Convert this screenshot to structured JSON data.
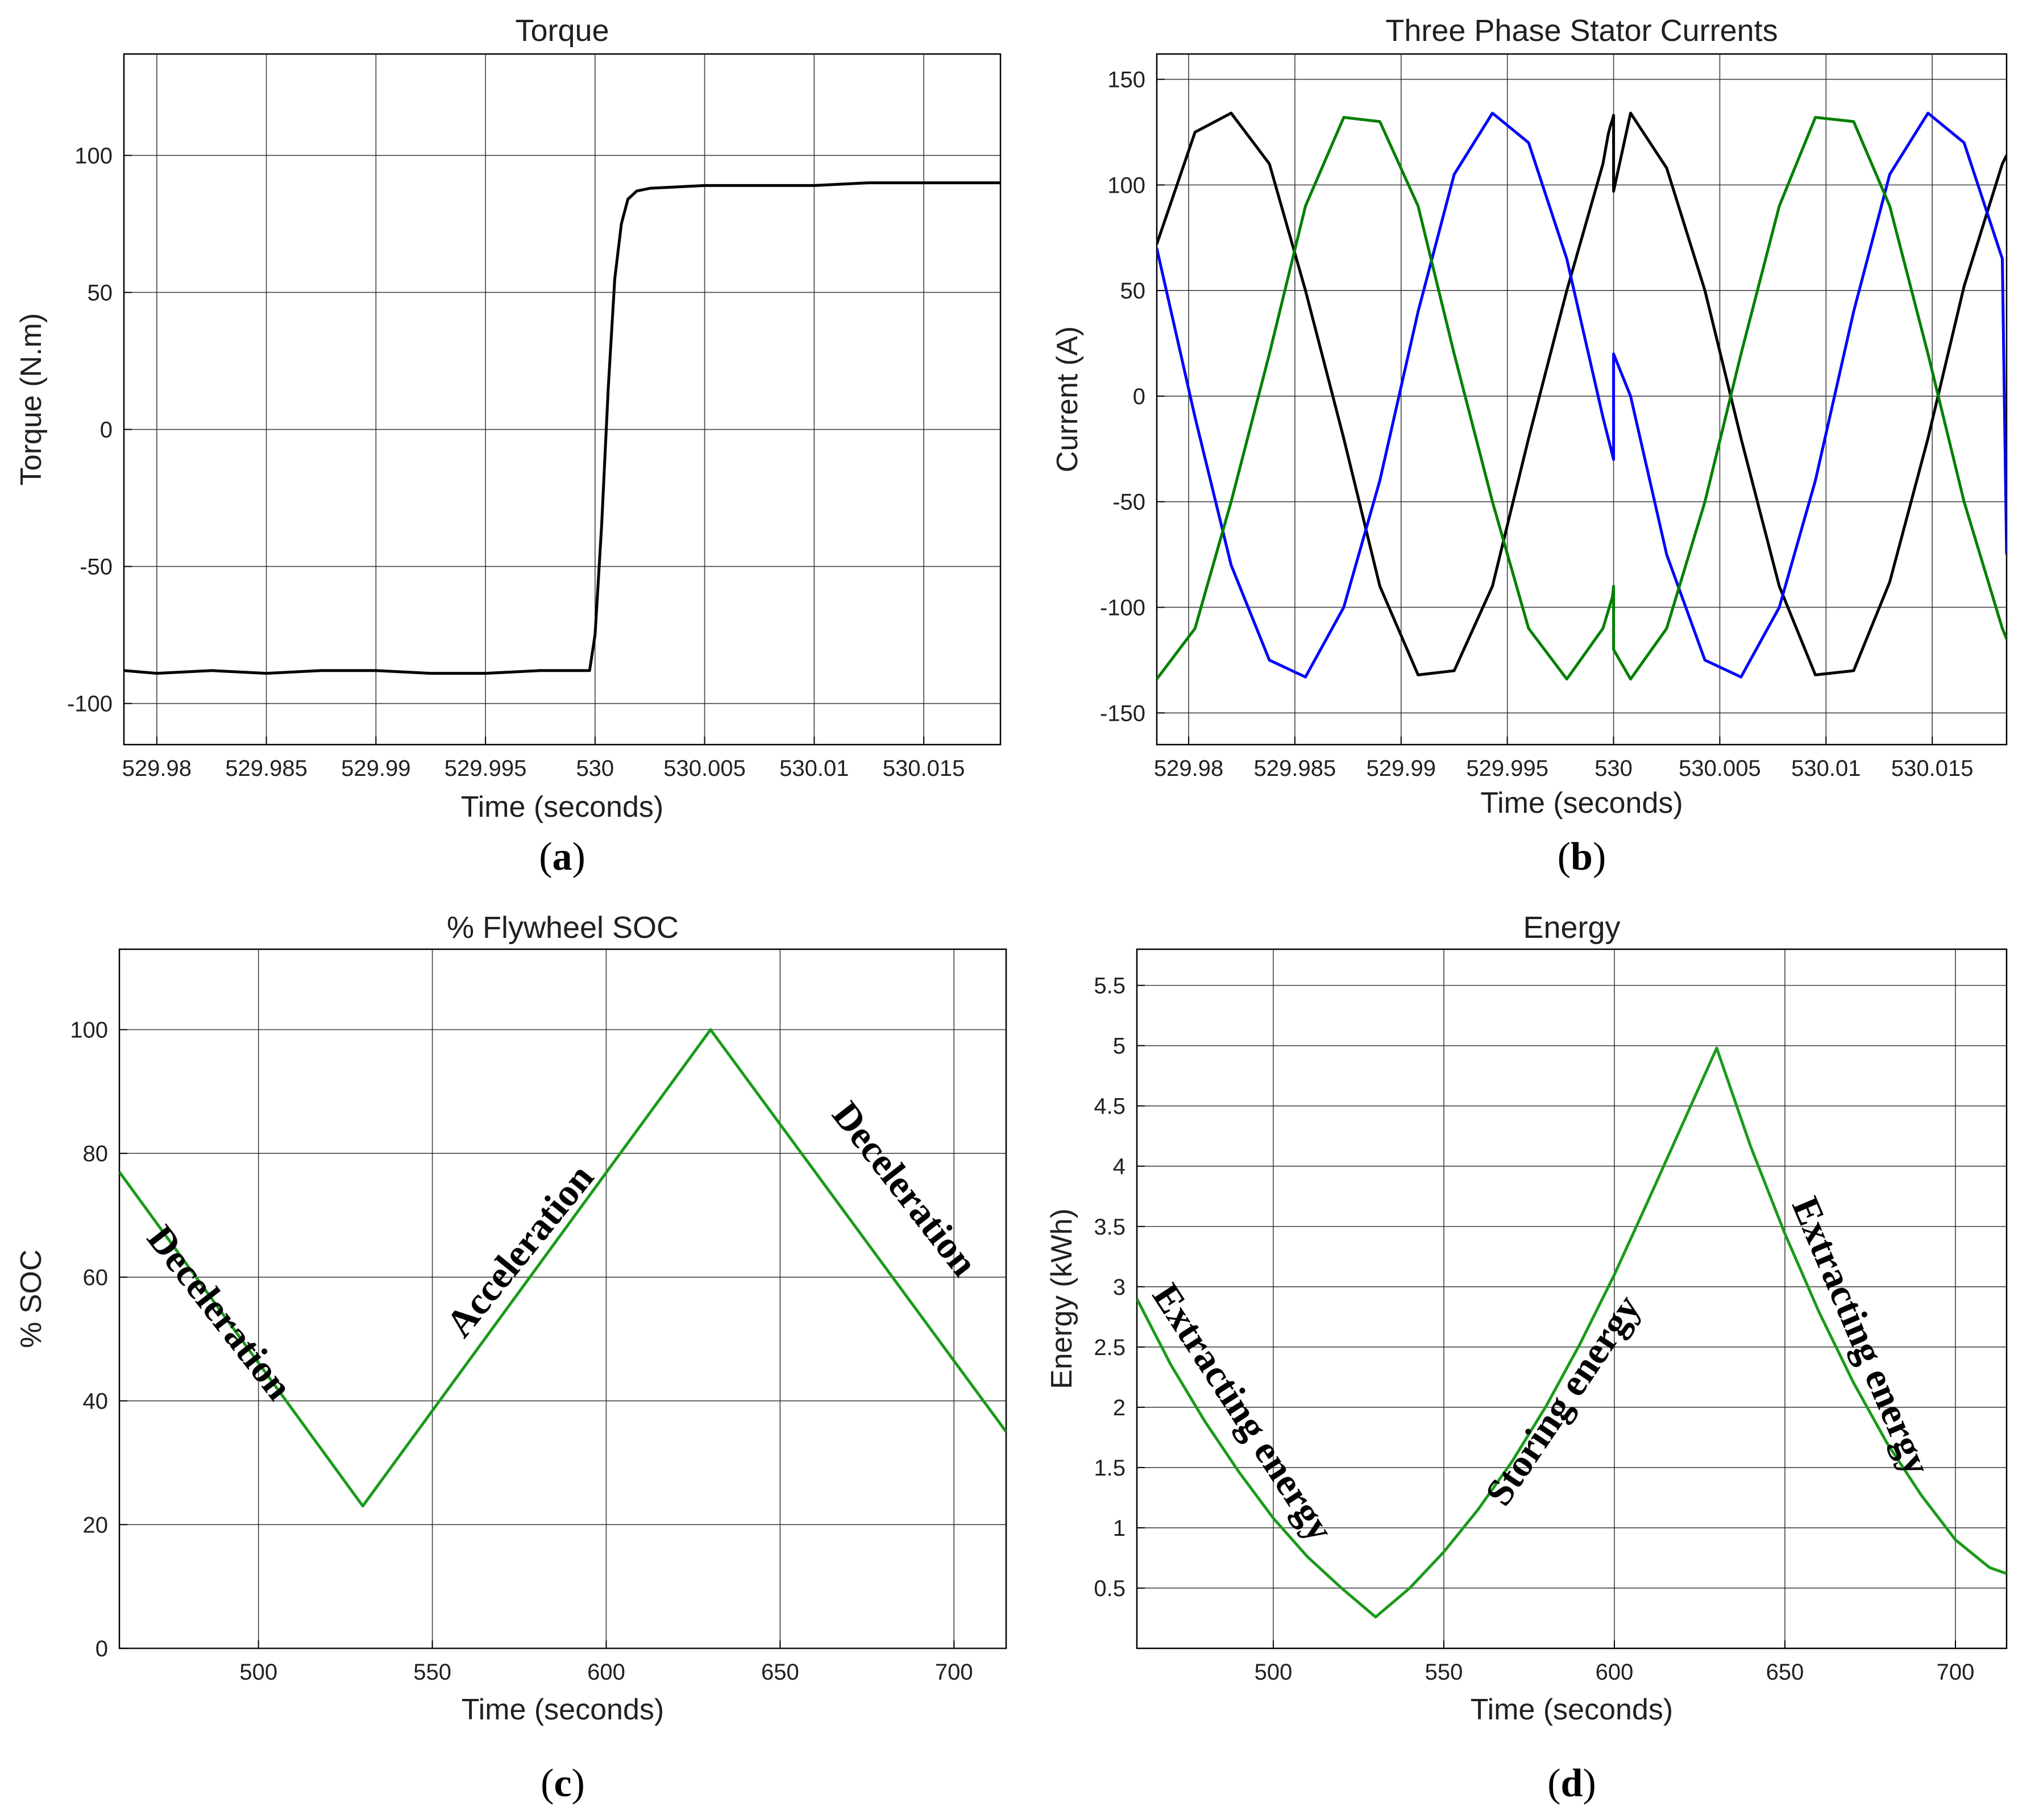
{
  "chart_data": [
    {
      "id": "a",
      "type": "line",
      "title": "Torque",
      "xlabel": "Time (seconds)",
      "ylabel": "Torque (N.m)",
      "caption": "a",
      "xlim": [
        529.9785,
        530.0185
      ],
      "ylim": [
        -115,
        137
      ],
      "xticks": [
        529.98,
        529.985,
        529.99,
        529.995,
        530,
        530.005,
        530.01,
        530.015
      ],
      "xtick_labels": [
        "529.98",
        "529.985",
        "529.99",
        "529.995",
        "530",
        "530.005",
        "530.01",
        "530.015"
      ],
      "yticks": [
        -100,
        -50,
        0,
        50,
        100
      ],
      "ytick_labels": [
        "-100",
        "-50",
        "0",
        "50",
        "100"
      ],
      "annotations": [],
      "series": [
        {
          "name": "Torque",
          "color": "#000000",
          "x": [
            529.9785,
            529.98,
            529.9825,
            529.985,
            529.9875,
            529.99,
            529.9925,
            529.995,
            529.9975,
            529.99975,
            530.0,
            530.0003,
            530.0006,
            530.0009,
            530.0012,
            530.0015,
            530.0019,
            530.0025,
            530.005,
            530.0075,
            530.01,
            530.0125,
            530.015,
            530.0185
          ],
          "y": [
            -88,
            -89,
            -88,
            -89,
            -88,
            -88,
            -89,
            -89,
            -88,
            -88,
            -75,
            -35,
            15,
            55,
            75,
            84,
            87,
            88,
            89,
            89,
            89,
            90,
            90,
            90
          ]
        }
      ]
    },
    {
      "id": "b",
      "type": "line",
      "title": "Three Phase Stator Currents",
      "xlabel": "Time (seconds)",
      "ylabel": "Current (A)",
      "caption": "b",
      "xlim": [
        529.9785,
        530.0185
      ],
      "ylim": [
        -165,
        162
      ],
      "xticks": [
        529.98,
        529.985,
        529.99,
        529.995,
        530,
        530.005,
        530.01,
        530.015
      ],
      "xtick_labels": [
        "529.98",
        "529.985",
        "529.99",
        "529.995",
        "530",
        "530.005",
        "530.01",
        "530.015"
      ],
      "yticks": [
        -150,
        -100,
        -50,
        0,
        50,
        100,
        150
      ],
      "ytick_labels": [
        "-150",
        "-100",
        "-50",
        "0",
        "50",
        "100",
        "150"
      ],
      "annotations": [],
      "series": [
        {
          "name": "Phase black",
          "color": "#000000",
          "x": [
            529.9785,
            529.9803,
            529.982,
            529.9838,
            529.9855,
            529.9873,
            529.989,
            529.9908,
            529.9925,
            529.9943,
            529.996,
            529.9978,
            529.9995,
            529.99975,
            529.99985,
            529.99995,
            530.0,
            530.0,
            530.0008,
            530.0025,
            530.0043,
            530.006,
            530.0078,
            530.0095,
            530.0113,
            530.013,
            530.0148,
            530.0165,
            530.0183,
            530.0185
          ],
          "y": [
            72,
            125,
            134,
            110,
            50,
            -20,
            -90,
            -132,
            -130,
            -90,
            -20,
            50,
            110,
            124,
            128,
            131,
            133,
            97,
            134,
            108,
            50,
            -20,
            -90,
            -132,
            -130,
            -88,
            -20,
            52,
            110,
            114
          ]
        },
        {
          "name": "Phase blue",
          "color": "#0000ff",
          "x": [
            529.9785,
            529.9803,
            529.982,
            529.9838,
            529.9855,
            529.9873,
            529.989,
            529.9908,
            529.9925,
            529.9943,
            529.996,
            529.9978,
            529.9995,
            530.0,
            530.0,
            530.0008,
            530.0025,
            530.0043,
            530.006,
            530.0078,
            530.0095,
            530.0113,
            530.013,
            530.0148,
            530.0165,
            530.0183,
            530.0185
          ],
          "y": [
            70,
            -10,
            -80,
            -125,
            -133,
            -100,
            -40,
            40,
            105,
            134,
            120,
            65,
            -10,
            -30,
            20,
            0,
            -75,
            -125,
            -133,
            -100,
            -40,
            40,
            105,
            134,
            120,
            65,
            -75
          ]
        },
        {
          "name": "Phase green",
          "color": "#008000",
          "x": [
            529.9785,
            529.9803,
            529.982,
            529.9838,
            529.9855,
            529.9873,
            529.989,
            529.9908,
            529.9925,
            529.9943,
            529.996,
            529.9978,
            529.9995,
            529.99995,
            530.0,
            530.0,
            530.0008,
            530.0025,
            530.0043,
            530.006,
            530.0078,
            530.0095,
            530.0113,
            530.013,
            530.0148,
            530.0165,
            530.0183,
            530.0185
          ],
          "y": [
            -134,
            -110,
            -50,
            20,
            90,
            132,
            130,
            90,
            20,
            -50,
            -110,
            -134,
            -110,
            -95,
            -90,
            -120,
            -134,
            -110,
            -50,
            20,
            90,
            132,
            130,
            90,
            20,
            -50,
            -110,
            -115
          ]
        }
      ]
    },
    {
      "id": "c",
      "type": "line",
      "title": "% Flywheel SOC",
      "xlabel": "Time (seconds)",
      "ylabel": "% SOC",
      "caption": "c",
      "xlim": [
        460,
        715
      ],
      "ylim": [
        0,
        113
      ],
      "xticks": [
        500,
        550,
        600,
        650,
        700
      ],
      "xtick_labels": [
        "500",
        "550",
        "600",
        "650",
        "700"
      ],
      "yticks": [
        0,
        20,
        40,
        60,
        80,
        100
      ],
      "ytick_labels": [
        "0",
        "20",
        "40",
        "60",
        "80",
        "100"
      ],
      "annotations": [
        {
          "text": "Deceleration",
          "x": 486,
          "y": 53,
          "angle": 52
        },
        {
          "text": "Acceleration",
          "x": 578,
          "y": 63,
          "angle": -51
        },
        {
          "text": "Deceleration",
          "x": 683,
          "y": 73,
          "angle": 52
        }
      ],
      "series": [
        {
          "name": "% SOC",
          "color": "#1a9a1a",
          "x": [
            460,
            530,
            630,
            715
          ],
          "y": [
            77,
            23,
            100,
            35
          ]
        }
      ]
    },
    {
      "id": "d",
      "type": "line",
      "title": "Energy",
      "xlabel": "Time (seconds)",
      "ylabel": "Energy (kWh)",
      "caption": "d",
      "xlim": [
        460,
        715
      ],
      "ylim": [
        0,
        5.8
      ],
      "xticks": [
        500,
        550,
        600,
        650,
        700
      ],
      "xtick_labels": [
        "500",
        "550",
        "600",
        "650",
        "700"
      ],
      "yticks": [
        0.5,
        1,
        1.5,
        2,
        2.5,
        3,
        3.5,
        4,
        4.5,
        5,
        5.5
      ],
      "ytick_labels": [
        "0.5",
        "1",
        "1.5",
        "2",
        "2.5",
        "3",
        "3.5",
        "4",
        "4.5",
        "5",
        "5.5"
      ],
      "annotations": [
        {
          "text": "Extracting energy",
          "x": 488,
          "y": 1.9,
          "angle": 57
        },
        {
          "text": "Storing energy",
          "x": 588,
          "y": 2.0,
          "angle": -56
        },
        {
          "text": "Extracting energy",
          "x": 669,
          "y": 2.55,
          "angle": 67
        }
      ],
      "series": [
        {
          "name": "Energy",
          "color": "#1a9a1a",
          "x": [
            460,
            470,
            480,
            490,
            500,
            510,
            520,
            530,
            540,
            550,
            560,
            570,
            580,
            590,
            600,
            610,
            620,
            630,
            640,
            650,
            660,
            670,
            680,
            690,
            700,
            710,
            715
          ],
          "y": [
            2.9,
            2.35,
            1.88,
            1.46,
            1.08,
            0.76,
            0.5,
            0.26,
            0.5,
            0.8,
            1.15,
            1.55,
            2.01,
            2.53,
            3.1,
            3.72,
            4.35,
            4.98,
            4.16,
            3.44,
            2.79,
            2.21,
            1.7,
            1.27,
            0.9,
            0.67,
            0.62
          ]
        }
      ]
    }
  ]
}
